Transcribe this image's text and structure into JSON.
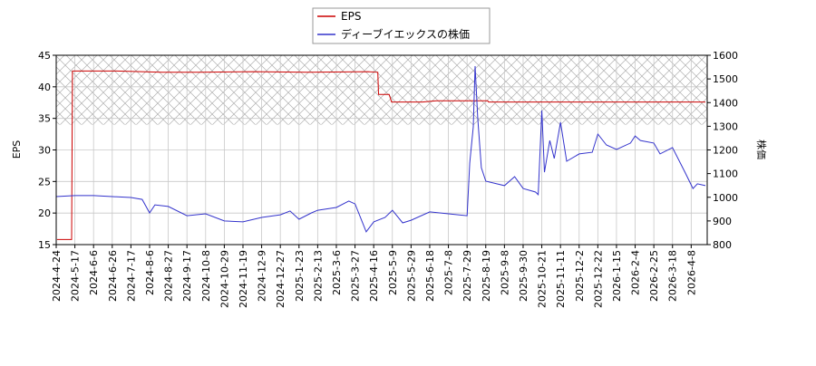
{
  "chart_data": {
    "type": "line",
    "xlim": [
      "2024-4-24",
      "2026-4-26"
    ],
    "xticks": [
      "2024-4-24",
      "2024-5-17",
      "2024-6-6",
      "2024-6-26",
      "2024-7-17",
      "2024-8-6",
      "2024-8-27",
      "2024-9-17",
      "2024-10-8",
      "2024-10-29",
      "2024-11-19",
      "2024-12-9",
      "2024-12-27",
      "2025-1-23",
      "2025-2-13",
      "2025-3-6",
      "2025-3-27",
      "2025-4-16",
      "2025-5-9",
      "2025-5-29",
      "2025-6-18",
      "2025-7-8",
      "2025-7-29",
      "2025-8-19",
      "2025-9-8",
      "2025-9-30",
      "2025-10-21",
      "2025-11-11",
      "2025-12-2",
      "2025-12-22",
      "2026-1-15",
      "2026-2-4",
      "2026-2-25",
      "2026-3-18",
      "2026-4-8"
    ],
    "ylabel": "EPS",
    "ylim": [
      15,
      45
    ],
    "yticks": [
      15,
      20,
      25,
      30,
      35,
      40,
      45
    ],
    "y2label": "株価",
    "y2lim": [
      800,
      1600
    ],
    "y2ticks": [
      800,
      900,
      1000,
      1100,
      1200,
      1300,
      1400,
      1500,
      1600
    ],
    "shaded_range": [
      34,
      45
    ],
    "grid": true,
    "legend": "top",
    "series": [
      {
        "name": "EPS",
        "color": "#cc0000",
        "x": [
          "2024-4-25",
          "2024-5-13",
          "2024-5-14",
          "2024-7-1",
          "2024-8-20",
          "2024-10-1",
          "2024-12-1",
          "2025-2-1",
          "2025-4-10",
          "2025-4-21",
          "2025-4-22",
          "2025-5-5",
          "2025-5-8",
          "2025-6-10",
          "2025-6-25",
          "2025-8-21",
          "2025-8-22",
          "2026-4-24"
        ],
        "values": [
          15.8,
          15.8,
          42.5,
          42.5,
          42.3,
          42.3,
          42.4,
          42.3,
          42.4,
          42.3,
          38.8,
          38.8,
          37.6,
          37.6,
          37.8,
          37.8,
          37.6,
          37.6
        ]
      },
      {
        "name": "ディーブイエックスの株価",
        "color": "#3333cc",
        "axis": "y2",
        "x": [
          "2024-4-24",
          "2024-5-17",
          "2024-6-6",
          "2024-6-26",
          "2024-7-17",
          "2024-7-29",
          "2024-8-6",
          "2024-8-12",
          "2024-8-27",
          "2024-9-17",
          "2024-10-8",
          "2024-10-29",
          "2024-11-19",
          "2024-12-9",
          "2024-12-27",
          "2025-1-10",
          "2025-1-23",
          "2025-2-6",
          "2025-2-13",
          "2025-3-6",
          "2025-3-20",
          "2025-3-27",
          "2025-4-8",
          "2025-4-16",
          "2025-4-30",
          "2025-5-9",
          "2025-5-20",
          "2025-5-29",
          "2025-6-18",
          "2025-7-8",
          "2025-7-29",
          "2025-8-1",
          "2025-8-5",
          "2025-8-7",
          "2025-8-10",
          "2025-8-14",
          "2025-8-19",
          "2025-9-8",
          "2025-9-20",
          "2025-9-30",
          "2025-10-14",
          "2025-10-17",
          "2025-10-21",
          "2025-10-24",
          "2025-10-30",
          "2025-11-4",
          "2025-11-11",
          "2025-11-18",
          "2025-12-2",
          "2025-12-16",
          "2025-12-22",
          "2026-1-2",
          "2026-1-15",
          "2026-1-30",
          "2026-2-4",
          "2026-2-10",
          "2026-2-25",
          "2026-3-4",
          "2026-3-18",
          "2026-4-1",
          "2026-4-10",
          "2026-4-15",
          "2026-4-24"
        ],
        "values": [
          1003,
          1007,
          1007,
          1003,
          999,
          991,
          934,
          968,
          961,
          922,
          930,
          900,
          896,
          915,
          926,
          942,
          907,
          934,
          945,
          957,
          984,
          972,
          854,
          896,
          915,
          945,
          892,
          903,
          938,
          930,
          922,
          1145,
          1298,
          1554,
          1336,
          1125,
          1068,
          1049,
          1087,
          1037,
          1022,
          1011,
          1367,
          1106,
          1240,
          1164,
          1317,
          1152,
          1183,
          1190,
          1267,
          1221,
          1202,
          1229,
          1259,
          1240,
          1229,
          1183,
          1210,
          1106,
          1037,
          1057,
          1049
        ]
      }
    ]
  }
}
